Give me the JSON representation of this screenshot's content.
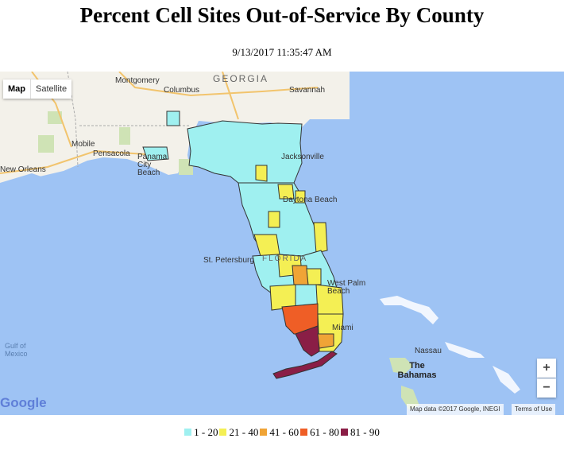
{
  "title": "Percent Cell Sites Out-of-Service By County",
  "timestamp": "9/13/2017 11:35:47 AM",
  "map": {
    "type_controls": {
      "map": "Map",
      "satellite": "Satellite",
      "selected": "map"
    },
    "zoom": {
      "in": "+",
      "out": "−"
    },
    "labels": {
      "georgia": "GEORGIA",
      "montgomery": "Montgomery",
      "columbus": "Columbus",
      "savannah": "Savannah",
      "mobile": "Mobile",
      "pensacola": "Pensacola",
      "panama_city_beach": "Panama City Beach",
      "new_orleans": "New Orleans",
      "jacksonville": "Jacksonville",
      "daytona_beach": "Daytona Beach",
      "st_petersburg": "St. Petersburg",
      "florida": "FLORIDA",
      "west_palm_beach": "West Palm Beach",
      "miami": "Miami",
      "gulf_of_mexico": "Gulf of Mexico",
      "nassau": "Nassau",
      "the_bahamas": "The Bahamas"
    },
    "logo": "Google",
    "attribution": "Map data ©2017 Google, INEGI",
    "terms": "Terms of Use"
  },
  "legend": [
    {
      "label": "1 - 20",
      "color": "#9ff0f0"
    },
    {
      "label": "21 - 40",
      "color": "#f4ef54"
    },
    {
      "label": "41 - 60",
      "color": "#f0a436"
    },
    {
      "label": "61 - 80",
      "color": "#ef5e26"
    },
    {
      "label": "81 - 90",
      "color": "#8a1e46"
    }
  ]
}
